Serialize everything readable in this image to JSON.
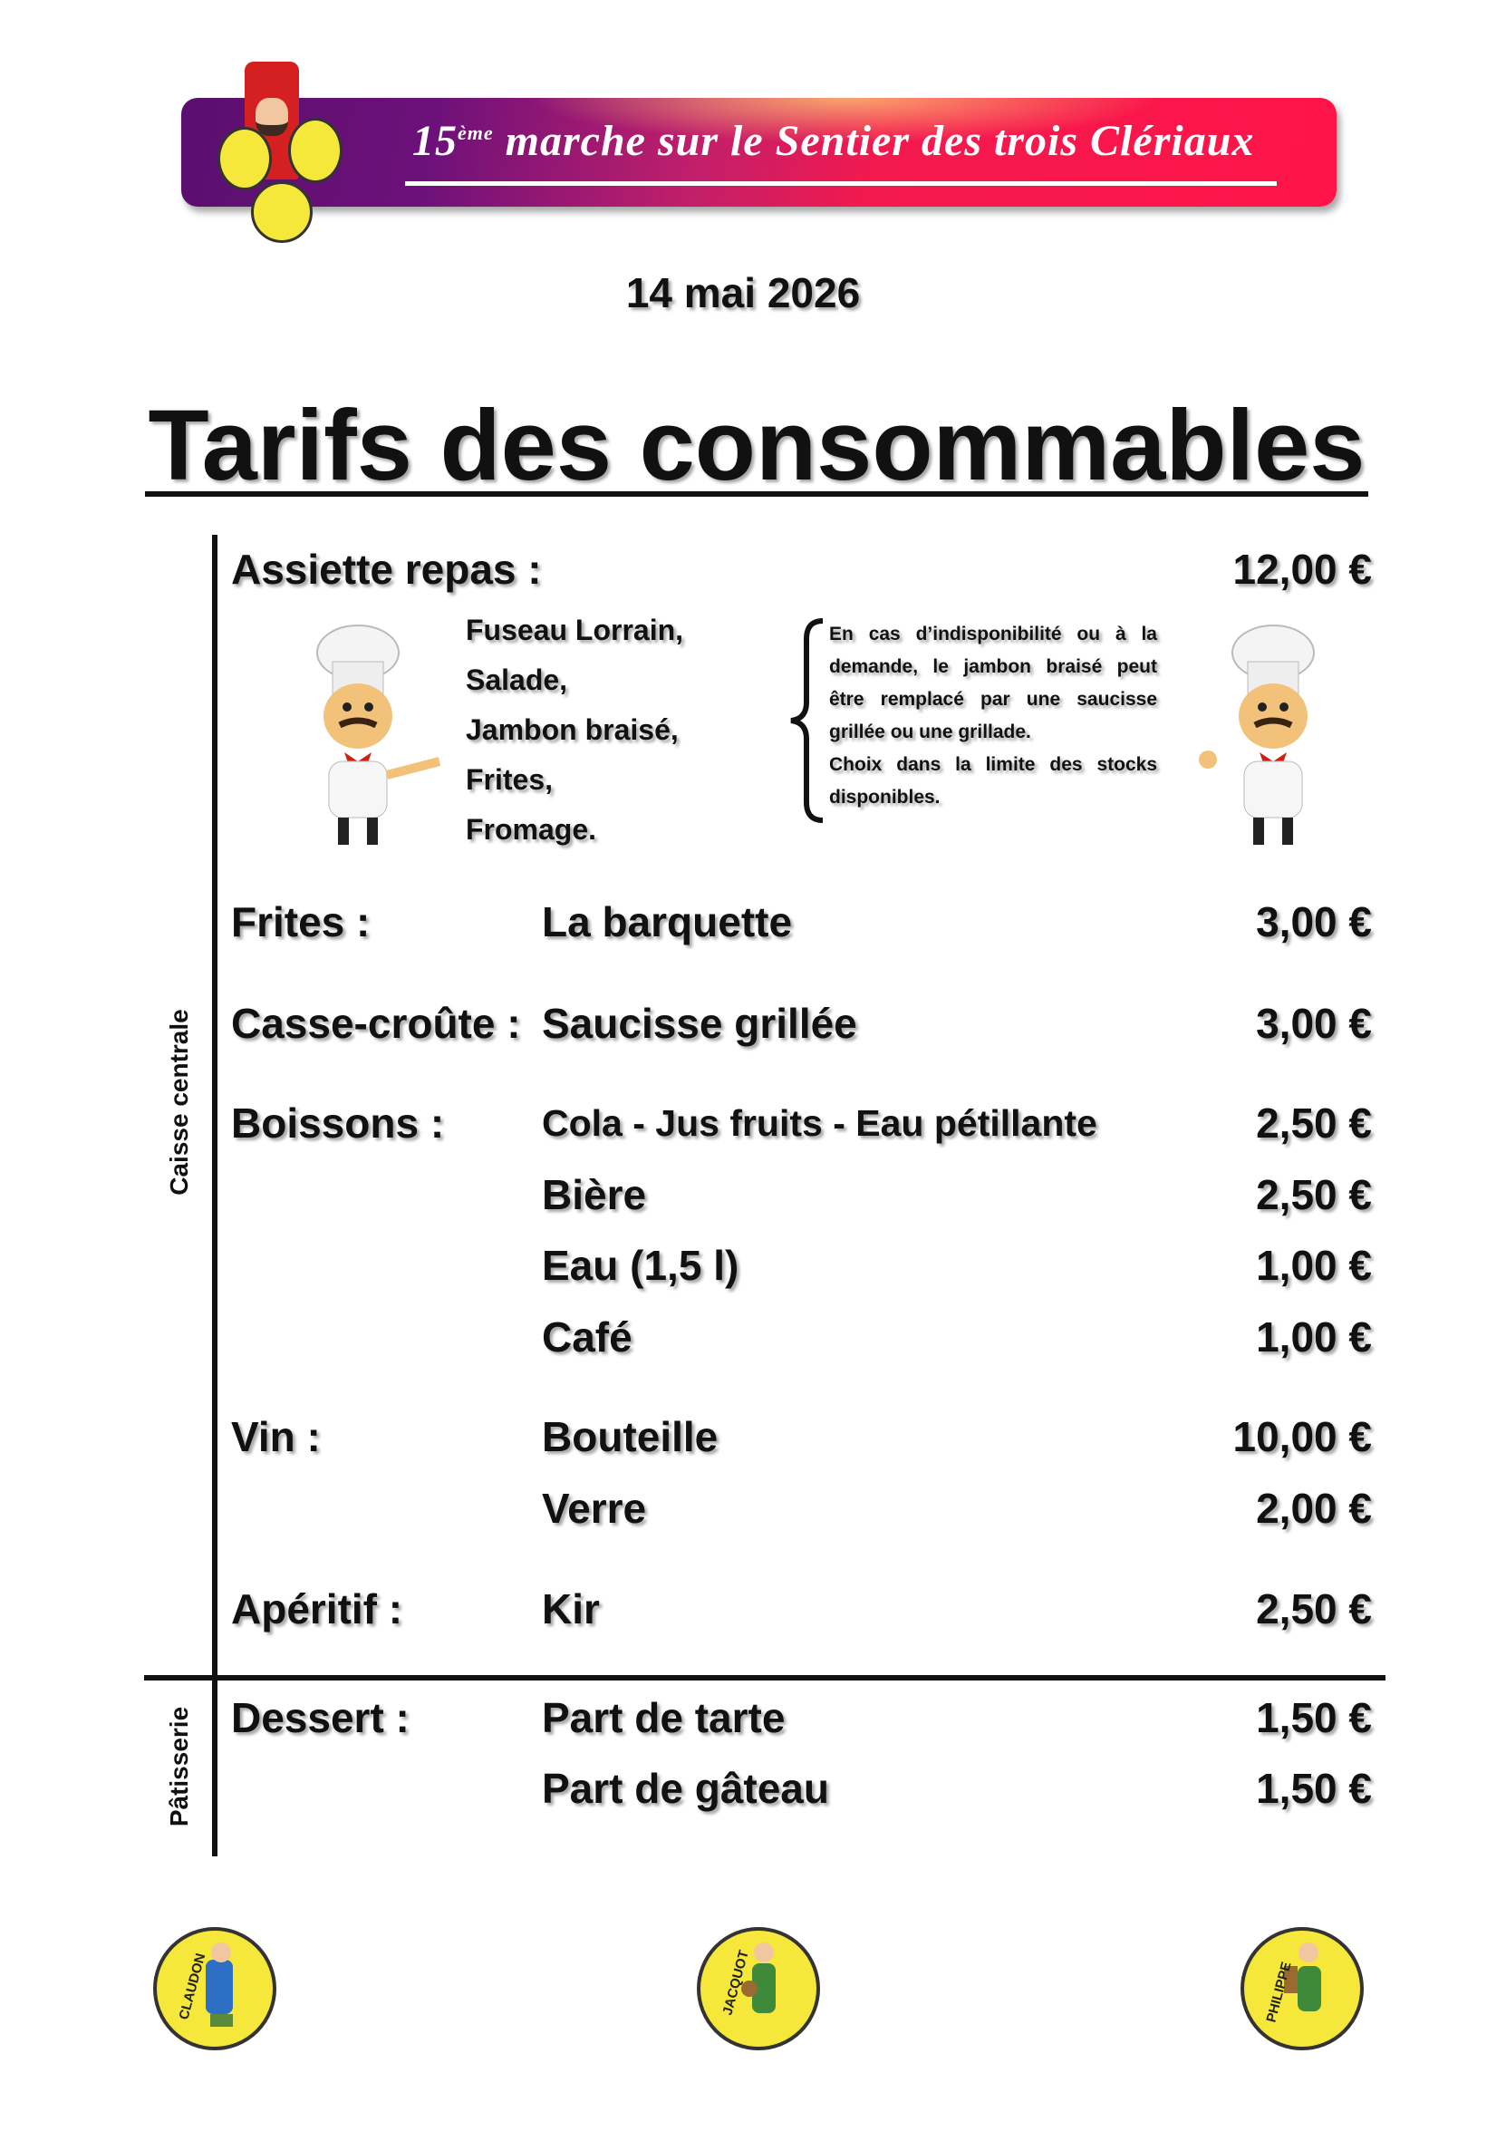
{
  "banner": {
    "title_number": "15",
    "title_suffix": "ème",
    "title_rest": "marche sur le Sentier des trois Clériaux",
    "logo_names": [
      "CLAUDON",
      "PHILIPPE",
      "JACQUOT"
    ]
  },
  "date": "14 mai 2026",
  "title": "Tarifs des consommables",
  "sections": {
    "caisse": "Caisse centrale",
    "patisserie": "Pâtisserie"
  },
  "assiette": {
    "label": "Assiette repas :",
    "price": "12,00 €",
    "items": [
      "Fuseau Lorrain,",
      "Salade,",
      "Jambon braisé,",
      "Frites,",
      "Fromage."
    ],
    "note": [
      "En cas d’indisponibilité ou à la demande, le jambon braisé peut être remplacé par une saucisse grillée ou une grillade.",
      "Choix dans la limite des stocks disponibles."
    ]
  },
  "rows": [
    {
      "category": "Frites :",
      "item": "La barquette",
      "price": "3,00 €"
    },
    {
      "category": "Casse-croûte :",
      "item": "Saucisse grillée",
      "price": "3,00 €"
    },
    {
      "category": "Boissons :",
      "item": "Cola - Jus fruits - Eau pétillante",
      "price": "2,50 €"
    },
    {
      "category": "",
      "item": "Bière",
      "price": "2,50 €"
    },
    {
      "category": "",
      "item": "Eau (1,5 l)",
      "price": "1,00 €"
    },
    {
      "category": "",
      "item": "Café",
      "price": "1,00 €"
    },
    {
      "category": "Vin :",
      "item": "Bouteille",
      "price": "10,00 €"
    },
    {
      "category": "",
      "item": "Verre",
      "price": "2,00 €"
    },
    {
      "category": "Apéritif :",
      "item": "Kir",
      "price": "2,50 €"
    },
    {
      "category": "Dessert :",
      "item": "Part de tarte",
      "price": "1,50 €"
    },
    {
      "category": "",
      "item": "Part de gâteau",
      "price": "1,50 €"
    }
  ],
  "footer_logos": [
    "CLAUDON",
    "JACQUOT",
    "PHILIPPE"
  ],
  "colors": {
    "banner_start": "#5a0f6e",
    "banner_end": "#ff1448",
    "logo_yellow": "#f5e83a"
  }
}
